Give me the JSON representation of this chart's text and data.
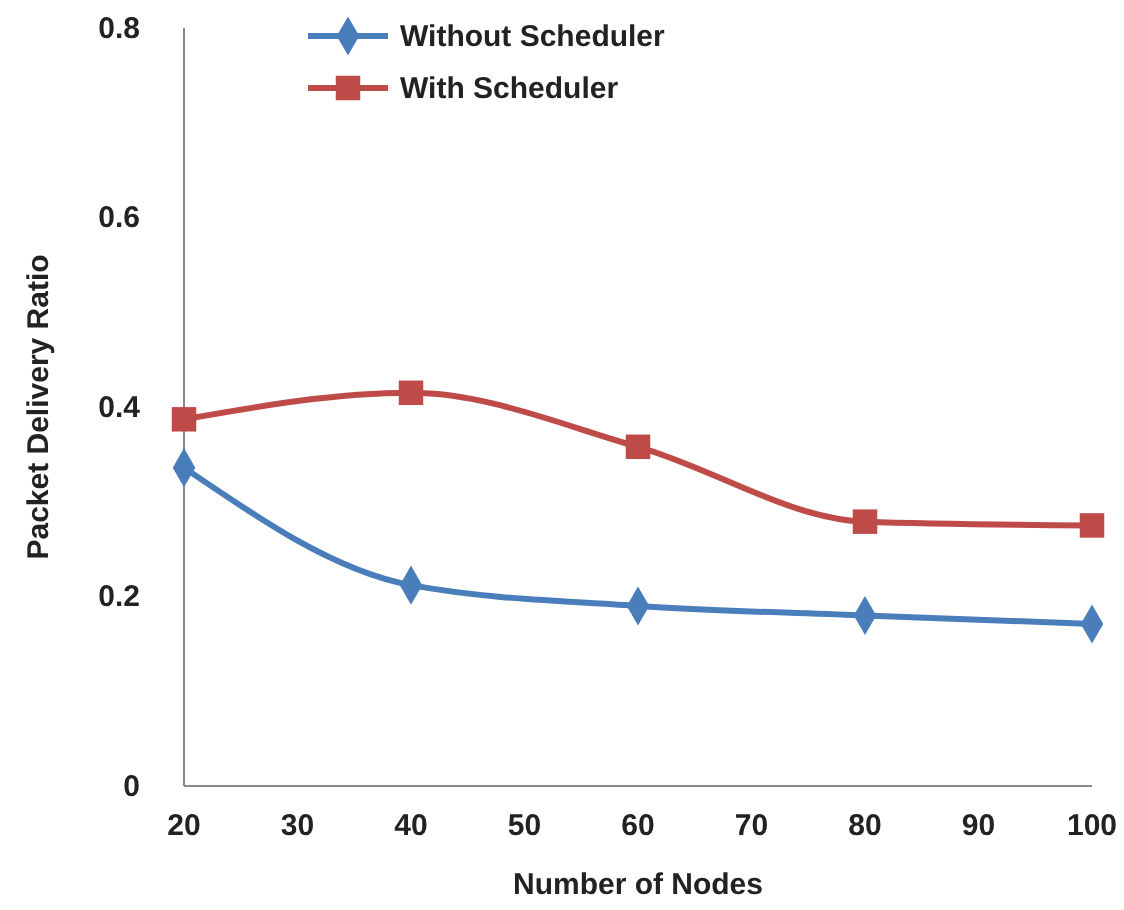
{
  "chart_data": {
    "type": "line",
    "xlabel": "Number of Nodes",
    "ylabel": "Packet Delivery Ratio",
    "x": [
      20,
      40,
      60,
      80,
      100
    ],
    "series": [
      {
        "name": "Without Scheduler",
        "color": "#4a7ebb",
        "marker": "diamond",
        "values": [
          0.336,
          0.212,
          0.19,
          0.18,
          0.171
        ]
      },
      {
        "name": "With Scheduler",
        "color": "#be4b48",
        "marker": "square",
        "values": [
          0.387,
          0.415,
          0.358,
          0.279,
          0.275
        ]
      }
    ],
    "xlim": [
      20,
      100
    ],
    "xticks": [
      20,
      30,
      40,
      50,
      60,
      70,
      80,
      90,
      100
    ],
    "ylim": [
      0,
      0.8
    ],
    "yticks": [
      0,
      0.2,
      0.4,
      0.6,
      0.8
    ],
    "grid": false,
    "legend": "top left",
    "line_style": "solid"
  }
}
